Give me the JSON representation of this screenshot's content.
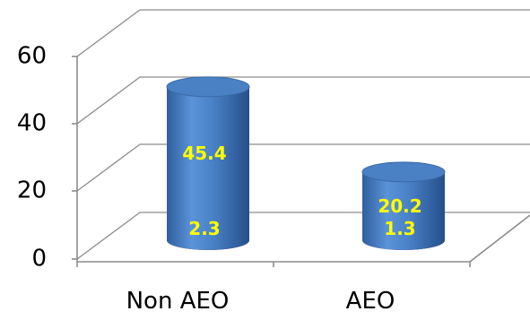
{
  "chart_data": {
    "type": "bar",
    "style": "3d-stacked-cylinder",
    "categories": [
      "Non  AEO",
      "AEO"
    ],
    "series": [
      {
        "values": [
          2.3,
          1.3
        ],
        "color": "#c00000"
      },
      {
        "values": [
          45.4,
          20.2
        ],
        "color": "#4f81bd"
      }
    ],
    "data_labels": [
      [
        "2.3",
        "1.3"
      ],
      [
        "45.4",
        "20.2"
      ]
    ],
    "ylim": [
      0,
      60
    ],
    "yticks": [
      "0",
      "20",
      "40",
      "60"
    ],
    "grid": true,
    "legend": "none",
    "label_color": "#ffff00"
  }
}
